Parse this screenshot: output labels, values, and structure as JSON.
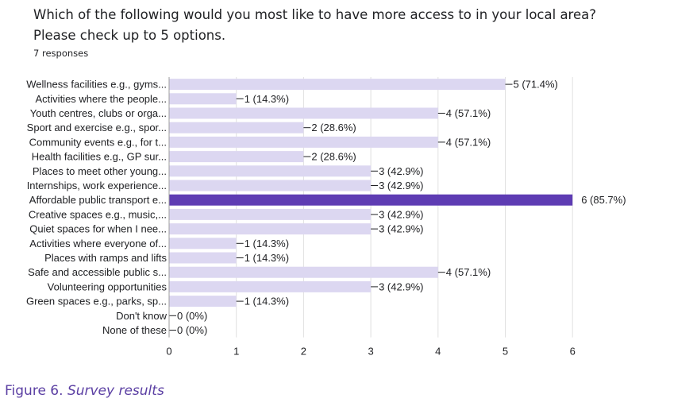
{
  "question": {
    "text": "Which of the following would you most like to have more access to in your local area? Please check up to 5 options.",
    "responses": "7 responses"
  },
  "caption": {
    "number": "Figure 6.",
    "title": "Survey results"
  },
  "colors": {
    "bar": "#dcd7f1",
    "highlight": "#5e3cb3",
    "axis": "#9e9e9e",
    "grid": "#e0e0e0",
    "caption": "#5b3fa3"
  },
  "chart_data": {
    "type": "bar",
    "orientation": "horizontal",
    "categories": [
      "Wellness facilities e.g., gyms...",
      "Activities where the people...",
      "Youth centres, clubs or orga...",
      "Sport and exercise e.g., spor...",
      "Community events e.g., for t...",
      "Health facilities e.g., GP sur...",
      "Places to meet other young...",
      "Internships, work experience...",
      "Affordable public transport e...",
      "Creative spaces e.g., music,...",
      "Quiet spaces for when I nee...",
      "Activities where everyone of...",
      "Places with ramps and lifts",
      "Safe and accessible public s...",
      "Volunteering opportunities",
      "Green spaces e.g., parks, sp...",
      "Don't know",
      "None of these"
    ],
    "values": [
      5,
      1,
      4,
      2,
      4,
      2,
      3,
      3,
      6,
      3,
      3,
      1,
      1,
      4,
      3,
      1,
      0,
      0
    ],
    "data_labels": [
      "5 (71.4%)",
      "1 (14.3%)",
      "4 (57.1%)",
      "2 (28.6%)",
      "4 (57.1%)",
      "2 (28.6%)",
      "3 (42.9%)",
      "3 (42.9%)",
      "6 (85.7%)",
      "3 (42.9%)",
      "3 (42.9%)",
      "1 (14.3%)",
      "1 (14.3%)",
      "4 (57.1%)",
      "3 (42.9%)",
      "1 (14.3%)",
      "0 (0%)",
      "0 (0%)"
    ],
    "highlighted_index": 8,
    "xlim": [
      0,
      6
    ],
    "xticks": [
      "0",
      "1",
      "2",
      "3",
      "4",
      "5",
      "6"
    ],
    "grid": true
  }
}
